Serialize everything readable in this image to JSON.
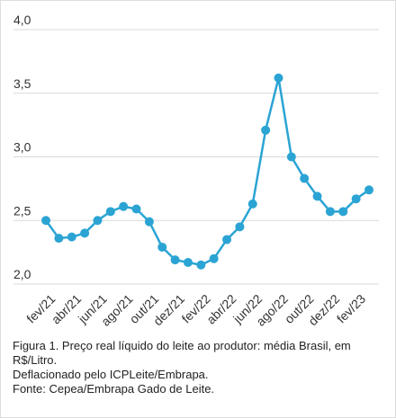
{
  "chart_data": {
    "type": "line",
    "categories": [
      "fev/21",
      null,
      "abr/21",
      null,
      "jun/21",
      null,
      "ago/21",
      null,
      "out/21",
      null,
      "dez/21",
      null,
      "fev/22",
      null,
      "abr/22",
      null,
      "jun/22",
      null,
      "ago/22",
      null,
      "out/22",
      null,
      "dez/22",
      null,
      "fev/23",
      null
    ],
    "series": [
      {
        "color": "#2ba4d4",
        "values": [
          2.5,
          2.36,
          2.37,
          2.4,
          2.5,
          2.57,
          2.61,
          2.59,
          2.49,
          2.29,
          2.19,
          2.17,
          2.15,
          2.2,
          2.35,
          2.45,
          2.63,
          3.21,
          3.62,
          3.0,
          2.83,
          2.69,
          2.57,
          2.57,
          2.67,
          2.74
        ]
      }
    ],
    "ylim": [
      2.0,
      4.0
    ],
    "yticks": [
      {
        "value": 2.0,
        "label": "2,0"
      },
      {
        "value": 2.5,
        "label": "2,5"
      },
      {
        "value": 3.0,
        "label": "3,0"
      },
      {
        "value": 3.5,
        "label": "3,5"
      },
      {
        "value": 4.0,
        "label": "4,0"
      }
    ],
    "grid": true
  },
  "caption": {
    "lines": [
      "Figura 1. Preço real líquido do leite ao produtor: média Brasil, em R$/Litro.",
      "Deflacionado pelo ICPLeite/Embrapa.",
      "Fonte: Cepea/Embrapa Gado de Leite."
    ]
  }
}
